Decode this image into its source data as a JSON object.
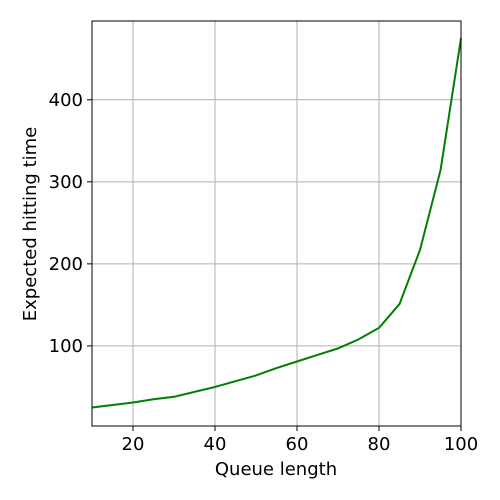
{
  "chart_data": {
    "type": "line",
    "x_label": "Queue length",
    "y_label": "Expected hitting time",
    "x": [
      10,
      15,
      20,
      25,
      30,
      35,
      40,
      45,
      50,
      55,
      60,
      65,
      70,
      75,
      80,
      85,
      90,
      95,
      100
    ],
    "series": [
      {
        "color": "#008000",
        "values": [
          25,
          28,
          31,
          35,
          38,
          44,
          50,
          57,
          64,
          73,
          81,
          89,
          97,
          108,
          122,
          151,
          217,
          314,
          475
        ]
      }
    ],
    "xlim": [
      10,
      100
    ],
    "xticks": [
      20,
      40,
      60,
      80,
      100
    ],
    "ylim": [
      2.4,
      496
    ],
    "yticks": [
      100,
      200,
      300,
      400
    ],
    "grid": true
  }
}
